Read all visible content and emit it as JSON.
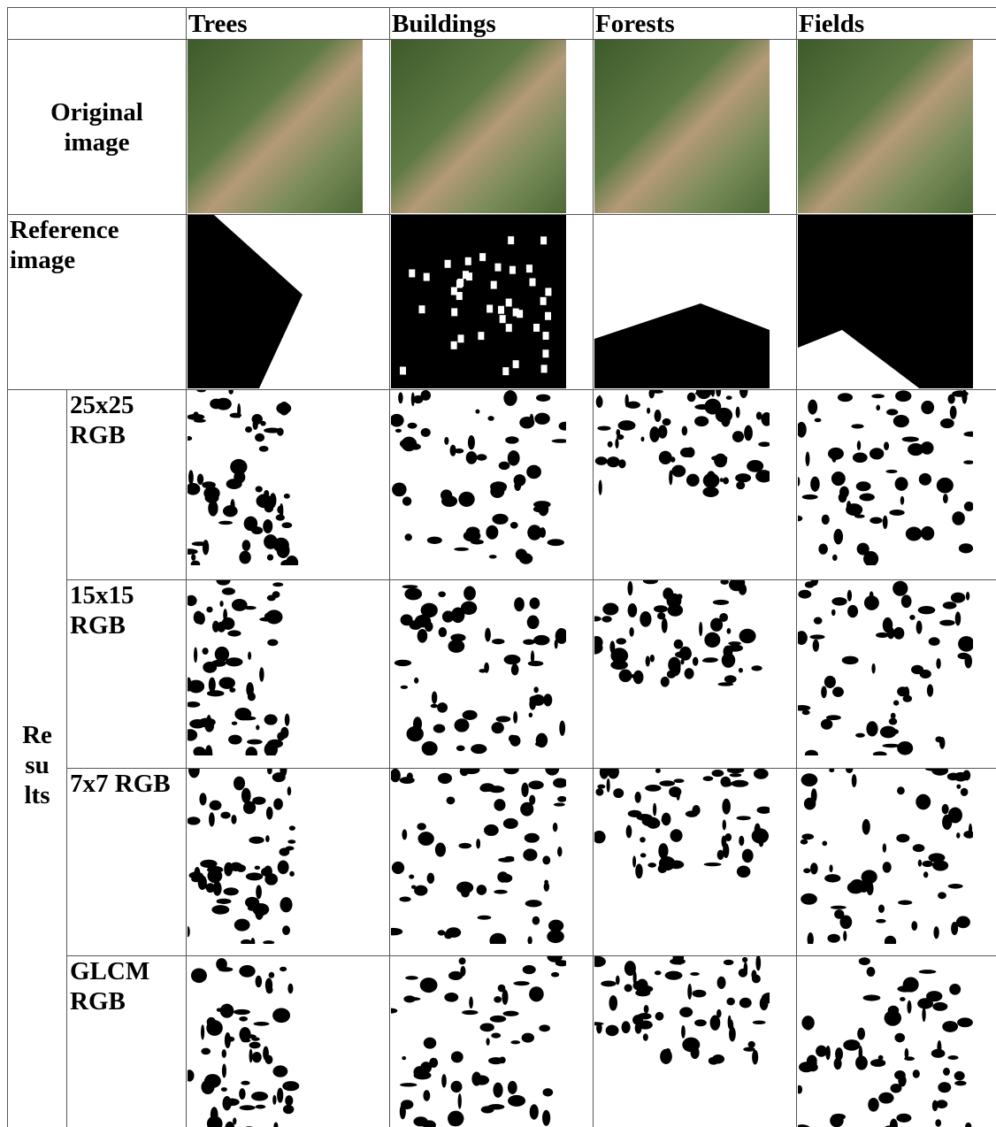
{
  "table": {
    "header": [
      "Trees",
      "Buildings",
      "Forests",
      "Fields"
    ],
    "original_label": "Original image",
    "reference_label": "Reference image",
    "results_label": [
      "Re",
      "su",
      "lts"
    ],
    "results": [
      "25x25 RGB",
      "15x15 RGB",
      "7x7 RGB",
      "GLCM RGB"
    ]
  }
}
